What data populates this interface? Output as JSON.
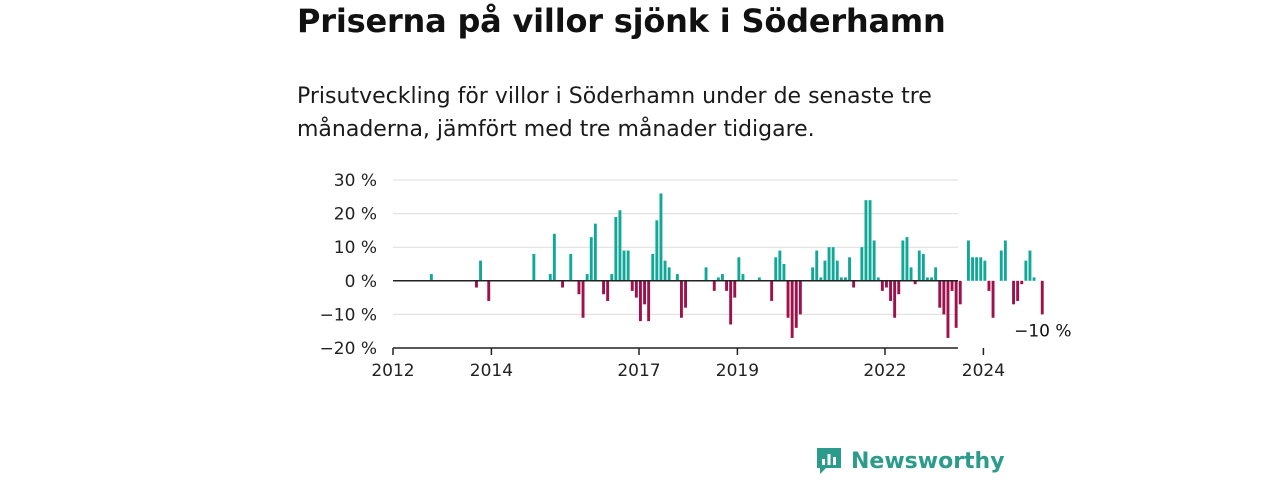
{
  "title": "Priserna på villor sjönk i Söderhamn",
  "subtitle": "Prisutveckling för villor i Söderhamn under de senaste tre månaderna, jämfört med tre månader tidigare.",
  "colors": {
    "positive": "#12a898",
    "negative": "#a0104a",
    "brand": "#2b9c8c",
    "grid": "#dddddd",
    "axis": "#222222"
  },
  "brand": {
    "name": "Newsworthy",
    "icon": "newsworthy-logo-icon"
  },
  "chart_data": {
    "type": "bar",
    "x_start": "2012-01",
    "interval": "month",
    "ylim": [
      -20,
      30
    ],
    "y_ticks": [
      {
        "value": 30,
        "label": "30 %"
      },
      {
        "value": 20,
        "label": "20 %"
      },
      {
        "value": 10,
        "label": "10 %"
      },
      {
        "value": 0,
        "label": "0 %"
      },
      {
        "value": -10,
        "label": "−10 %"
      },
      {
        "value": -20,
        "label": "−20 %"
      }
    ],
    "x_ticks": [
      {
        "month_index": 0,
        "label": "2012"
      },
      {
        "month_index": 24,
        "label": "2014"
      },
      {
        "month_index": 60,
        "label": "2017"
      },
      {
        "month_index": 84,
        "label": "2019"
      },
      {
        "month_index": 120,
        "label": "2022"
      },
      {
        "month_index": 144,
        "label": "2024"
      }
    ],
    "grid": true,
    "annotation": {
      "label": "−10 %",
      "month_index": 158
    },
    "values": [
      0,
      0,
      0,
      0,
      0,
      0,
      0,
      0,
      0,
      2,
      0,
      0,
      0,
      0,
      0,
      0,
      0,
      0,
      0,
      0,
      -2,
      6,
      0,
      -6,
      0,
      0,
      0,
      0,
      0,
      0,
      0,
      0,
      0,
      0,
      8,
      0,
      0,
      0,
      2,
      14,
      0,
      -2,
      0,
      8,
      0,
      -4,
      -11,
      2,
      13,
      17,
      0,
      -4,
      -6,
      2,
      19,
      21,
      9,
      9,
      -3,
      -5,
      -12,
      -7,
      -12,
      8,
      18,
      26,
      6,
      4,
      0,
      2,
      -11,
      -8,
      0,
      0,
      0,
      0,
      4,
      0,
      -3,
      1,
      2,
      -3,
      -13,
      -5,
      7,
      2,
      0,
      0,
      0,
      1,
      0,
      0,
      -6,
      7,
      9,
      5,
      -11,
      -17,
      -14,
      -10,
      0,
      0,
      4,
      9,
      1,
      6,
      10,
      10,
      6,
      1,
      1,
      7,
      -2,
      0,
      10,
      24,
      24,
      12,
      1,
      -3,
      -2,
      -6,
      -11,
      -4,
      12,
      13,
      4,
      -1,
      9,
      8,
      1,
      1,
      4,
      -8,
      -10,
      -17,
      -3,
      -14,
      -7,
      0,
      12,
      7,
      7,
      7,
      6,
      -3,
      -11,
      0,
      9,
      12,
      0,
      -7,
      -6,
      -1,
      6,
      9,
      1,
      0,
      -10
    ]
  }
}
